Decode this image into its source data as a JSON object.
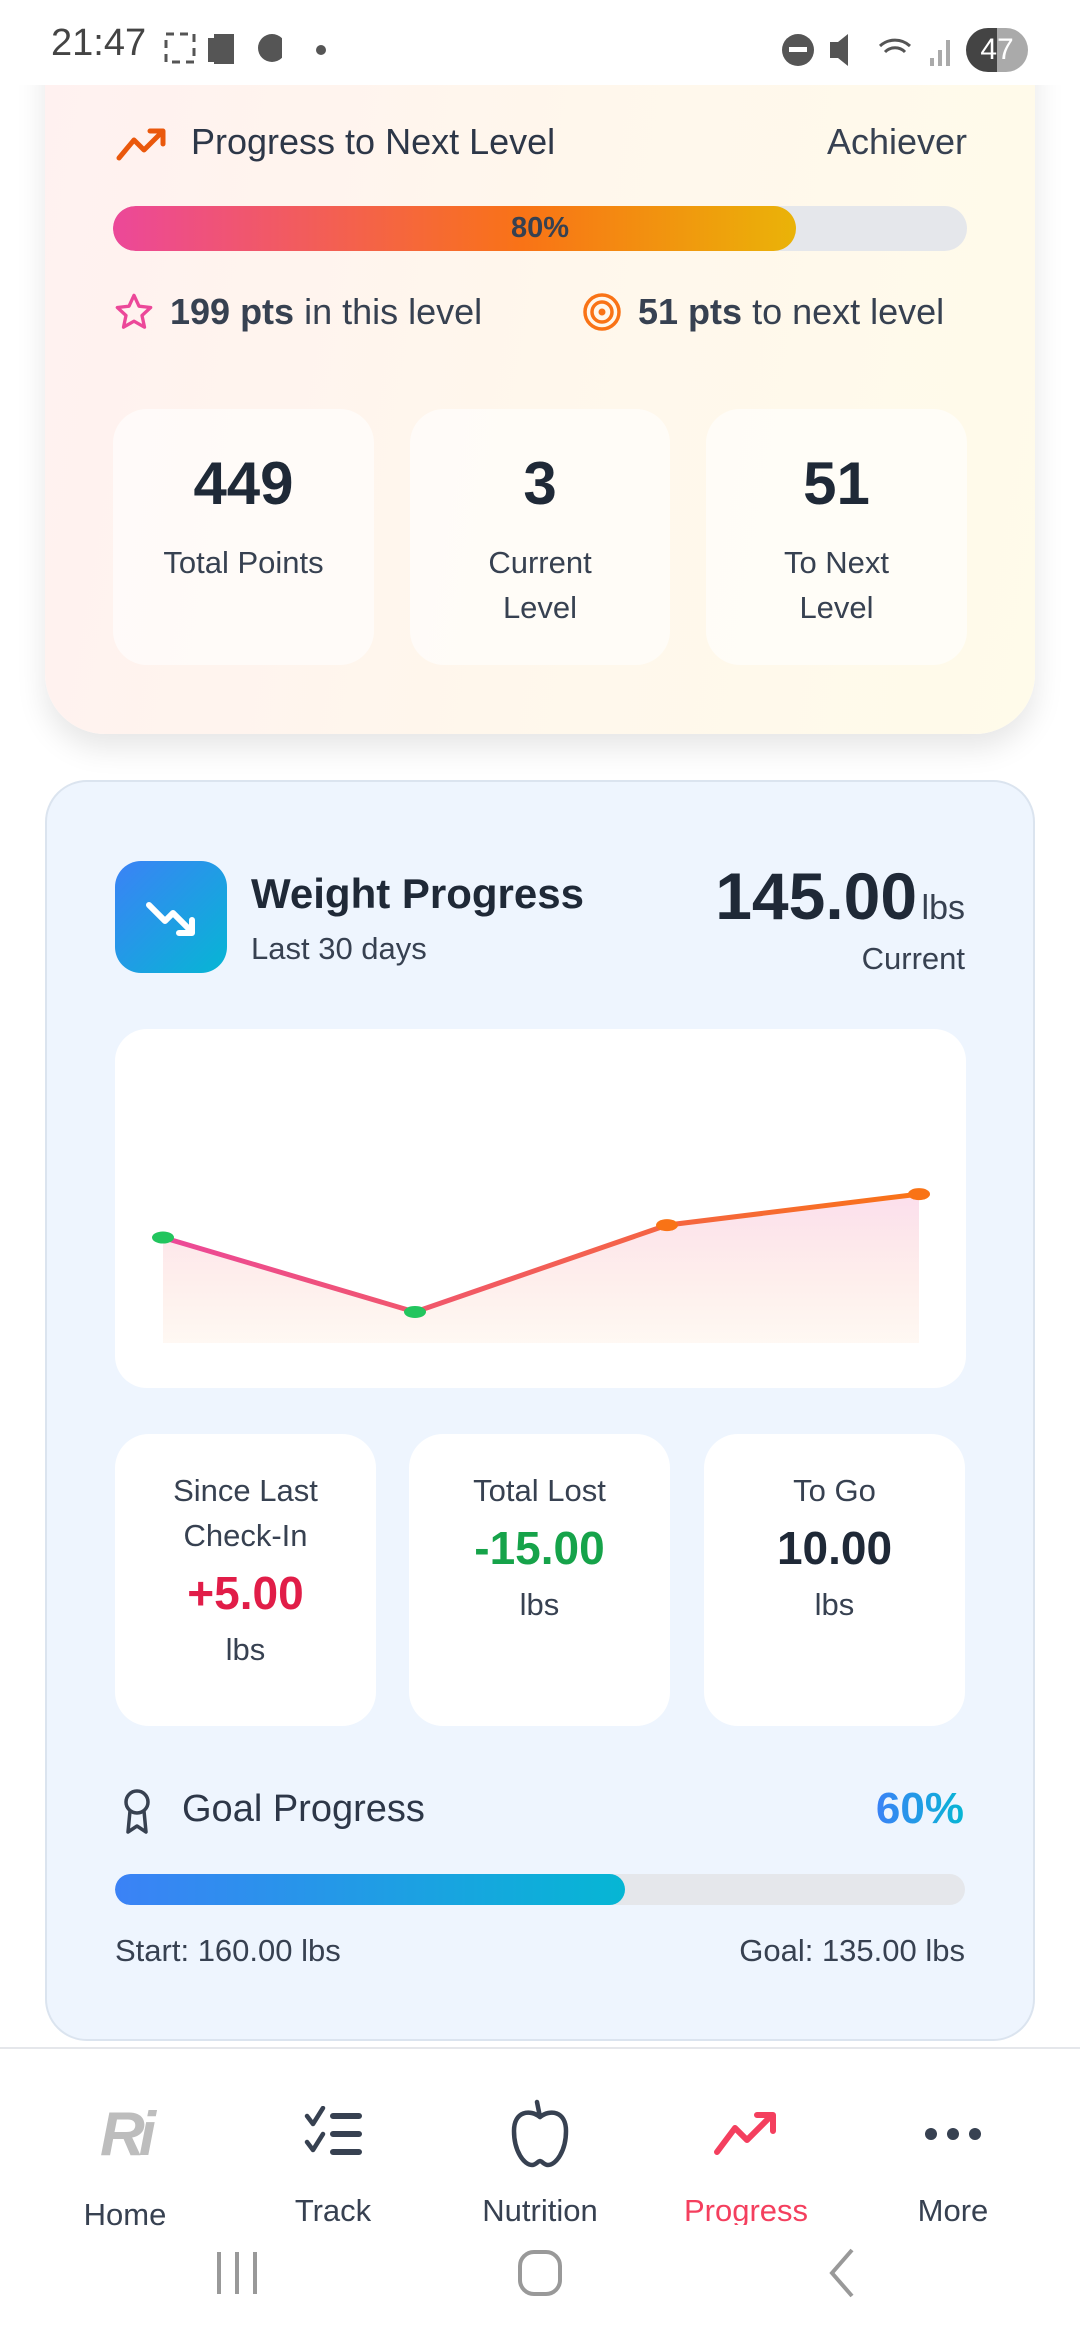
{
  "status_bar": {
    "time": "21:47",
    "battery": "47"
  },
  "level_card": {
    "title": "Progress to Next Level",
    "level_name": "Achiever",
    "progress_percent": 80,
    "progress_label": "80%",
    "pts_in_level_value": "199 pts",
    "pts_in_level_suffix": "in this level",
    "pts_to_next_value": "51 pts",
    "pts_to_next_suffix": "to next level",
    "stats": [
      {
        "value": "449",
        "label": "Total Points"
      },
      {
        "value": "3",
        "label": "Current Level"
      },
      {
        "value": "51",
        "label": "To Next Level"
      }
    ],
    "colors": {
      "bar_start": "#ec4899",
      "bar_mid": "#f97316",
      "bar_end": "#eab308"
    }
  },
  "weight_card": {
    "title": "Weight Progress",
    "subtitle": "Last 30 days",
    "current_value": "145.00",
    "current_unit": "lbs",
    "current_label": "Current",
    "stats": [
      {
        "label": "Since Last Check-In",
        "value": "+5.00",
        "unit": "lbs",
        "color": "#e11d48"
      },
      {
        "label": "Total Lost",
        "value": "-15.00",
        "unit": "lbs",
        "color": "#16a34a"
      },
      {
        "label": "To Go",
        "value": "10.00",
        "unit": "lbs",
        "color": "#1f2937"
      }
    ],
    "goal": {
      "title": "Goal Progress",
      "percent": 60,
      "percent_label": "60%",
      "start": "Start: 160.00 lbs",
      "goal": "Goal: 135.00 lbs"
    }
  },
  "chart_data": {
    "type": "area",
    "values": [
      138,
      126,
      140,
      145
    ],
    "point_colors": [
      "#22c55e",
      "#22c55e",
      "#f97316",
      "#f97316"
    ],
    "ylim": [
      121,
      165
    ],
    "grid": false,
    "line_gradient": [
      "#ec4899",
      "#f97316"
    ]
  },
  "bottom_nav": {
    "items": [
      {
        "label": "Home",
        "icon": "app-logo-icon",
        "active": false
      },
      {
        "label": "Track",
        "icon": "checklist-icon",
        "active": false
      },
      {
        "label": "Nutrition",
        "icon": "apple-icon",
        "active": false
      },
      {
        "label": "Progress",
        "icon": "trending-up-icon",
        "active": true
      },
      {
        "label": "More",
        "icon": "more-dots-icon",
        "active": false
      }
    ],
    "active_color": "#f43f5e",
    "home_logo_text": "Ri"
  }
}
